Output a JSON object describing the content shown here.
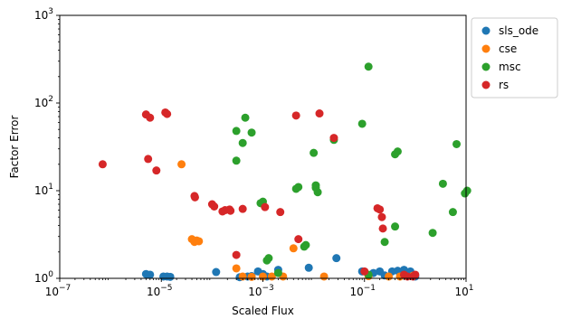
{
  "chart_data": {
    "type": "scatter",
    "xlabel": "Scaled Flux",
    "ylabel": "Factor Error",
    "x_scale": "log",
    "y_scale": "log",
    "xlim": [
      1e-07,
      10
    ],
    "ylim": [
      1,
      1000
    ],
    "x_ticks": [
      {
        "value": 1e-07,
        "base": "10",
        "exp": "−7"
      },
      {
        "value": 1e-05,
        "base": "10",
        "exp": "−5"
      },
      {
        "value": 0.001,
        "base": "10",
        "exp": "−3"
      },
      {
        "value": 0.1,
        "base": "10",
        "exp": "−1"
      },
      {
        "value": 10,
        "base": "10",
        "exp": "1"
      }
    ],
    "y_ticks": [
      {
        "value": 1,
        "base": "10",
        "exp": "0"
      },
      {
        "value": 10,
        "base": "10",
        "exp": "1"
      },
      {
        "value": 100,
        "base": "10",
        "exp": "2"
      },
      {
        "value": 1000,
        "base": "10",
        "exp": "3"
      }
    ],
    "grid": false,
    "legend_position": "upper-right-outside",
    "series": [
      {
        "name": "sls_ode",
        "color": "#1f77b4",
        "points": [
          [
            5e-06,
            1.12
          ],
          [
            6e-06,
            1.1
          ],
          [
            1.1e-05,
            1.05
          ],
          [
            1.3e-05,
            1.05
          ],
          [
            1.5e-05,
            1.04
          ],
          [
            0.00012,
            1.18
          ],
          [
            0.00035,
            1.03
          ],
          [
            0.0005,
            1.05
          ],
          [
            0.0006,
            1.06
          ],
          [
            0.0008,
            1.2
          ],
          [
            0.001,
            1.12
          ],
          [
            0.0012,
            1.05
          ],
          [
            0.002,
            1.25
          ],
          [
            0.008,
            1.32
          ],
          [
            0.028,
            1.7
          ],
          [
            0.09,
            1.2
          ],
          [
            0.15,
            1.15
          ],
          [
            0.2,
            1.2
          ],
          [
            0.25,
            1.08
          ],
          [
            0.35,
            1.2
          ],
          [
            0.45,
            1.22
          ],
          [
            0.6,
            1.25
          ],
          [
            0.8,
            1.2
          ],
          [
            1.0,
            1.05
          ]
        ]
      },
      {
        "name": "cse",
        "color": "#ff7f0e",
        "points": [
          [
            2.5e-05,
            20
          ],
          [
            4e-05,
            2.8
          ],
          [
            4.5e-05,
            2.6
          ],
          [
            5e-05,
            2.7
          ],
          [
            5.5e-05,
            2.65
          ],
          [
            0.0003,
            1.3
          ],
          [
            0.0004,
            1.05
          ],
          [
            0.0006,
            1.04
          ],
          [
            0.001,
            1.05
          ],
          [
            0.0015,
            1.05
          ],
          [
            0.0025,
            1.05
          ],
          [
            0.004,
            2.2
          ],
          [
            0.016,
            1.05
          ],
          [
            0.12,
            1.06
          ],
          [
            0.3,
            1.05
          ],
          [
            0.5,
            1.05
          ],
          [
            0.9,
            1.07
          ]
        ]
      },
      {
        "name": "msc",
        "color": "#2ca02c",
        "points": [
          [
            0.12,
            260
          ],
          [
            0.0003,
            48
          ],
          [
            0.00045,
            68
          ],
          [
            0.0006,
            46
          ],
          [
            0.0004,
            35
          ],
          [
            0.0003,
            22
          ],
          [
            0.0009,
            7.2
          ],
          [
            0.001,
            7.5
          ],
          [
            0.0012,
            1.6
          ],
          [
            0.0013,
            1.7
          ],
          [
            0.0045,
            10.5
          ],
          [
            0.005,
            11
          ],
          [
            0.01,
            27
          ],
          [
            0.011,
            11.5
          ],
          [
            0.012,
            9.6
          ],
          [
            0.011,
            10.8
          ],
          [
            0.025,
            38
          ],
          [
            0.09,
            58
          ],
          [
            0.12,
            1.1
          ],
          [
            0.25,
            2.6
          ],
          [
            0.4,
            26
          ],
          [
            0.45,
            28
          ],
          [
            0.4,
            3.9
          ],
          [
            2.2,
            3.3
          ],
          [
            3.5,
            12
          ],
          [
            5.5,
            5.7
          ],
          [
            6.5,
            34
          ],
          [
            9.5,
            9.3
          ],
          [
            10.5,
            10
          ],
          [
            0.002,
            1.15
          ],
          [
            0.007,
            2.4
          ],
          [
            0.0065,
            2.3
          ]
        ]
      },
      {
        "name": "rs",
        "color": "#d62728",
        "points": [
          [
            7e-07,
            20
          ],
          [
            5e-06,
            74
          ],
          [
            6e-06,
            68
          ],
          [
            5.5e-06,
            23
          ],
          [
            8e-06,
            17
          ],
          [
            1.2e-05,
            78
          ],
          [
            1.3e-05,
            75
          ],
          [
            4.5e-05,
            8.7
          ],
          [
            4.6e-05,
            8.4
          ],
          [
            0.0001,
            7
          ],
          [
            0.00011,
            6.6
          ],
          [
            0.00016,
            5.8
          ],
          [
            0.00018,
            6
          ],
          [
            0.00022,
            6.1
          ],
          [
            0.00023,
            5.9
          ],
          [
            0.0004,
            6.2
          ],
          [
            0.0003,
            1.85
          ],
          [
            0.0011,
            6.5
          ],
          [
            0.0022,
            5.7
          ],
          [
            0.0045,
            72
          ],
          [
            0.005,
            2.8
          ],
          [
            0.013,
            76
          ],
          [
            0.025,
            40
          ],
          [
            0.18,
            6.3
          ],
          [
            0.2,
            6.1
          ],
          [
            0.22,
            5
          ],
          [
            0.23,
            3.7
          ],
          [
            0.1,
            1.2
          ],
          [
            0.6,
            1.1
          ],
          [
            0.7,
            1.05
          ],
          [
            0.9,
            1.05
          ],
          [
            1.0,
            1.1
          ]
        ]
      }
    ]
  }
}
